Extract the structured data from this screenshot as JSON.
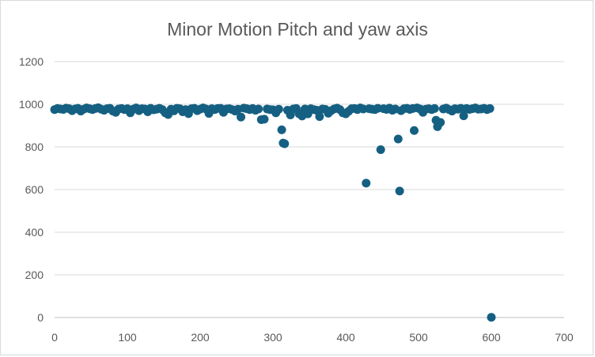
{
  "chart_data": {
    "type": "scatter",
    "title": "Minor Motion Pitch and yaw axis",
    "xlabel": "",
    "ylabel": "",
    "xlim": [
      0,
      700
    ],
    "ylim": [
      0,
      1200
    ],
    "x_ticks": [
      "0",
      "100",
      "200",
      "300",
      "400",
      "500",
      "600",
      "700"
    ],
    "y_ticks": [
      "0",
      "200",
      "400",
      "600",
      "800",
      "1000",
      "1200"
    ],
    "grid": {
      "horizontal": true,
      "vertical": false
    },
    "legend": "none",
    "marker_color": "#156082",
    "series": [
      {
        "points": [
          [
            0,
            975
          ],
          [
            4,
            980
          ],
          [
            8,
            978
          ],
          [
            12,
            976
          ],
          [
            16,
            982
          ],
          [
            20,
            979
          ],
          [
            24,
            970
          ],
          [
            28,
            978
          ],
          [
            32,
            981
          ],
          [
            36,
            968
          ],
          [
            40,
            977
          ],
          [
            44,
            983
          ],
          [
            48,
            979
          ],
          [
            52,
            975
          ],
          [
            56,
            980
          ],
          [
            60,
            984
          ],
          [
            64,
            977
          ],
          [
            68,
            972
          ],
          [
            72,
            979
          ],
          [
            76,
            981
          ],
          [
            80,
            968
          ],
          [
            84,
            962
          ],
          [
            88,
            978
          ],
          [
            92,
            980
          ],
          [
            96,
            975
          ],
          [
            100,
            979
          ],
          [
            104,
            960
          ],
          [
            108,
            977
          ],
          [
            112,
            983
          ],
          [
            116,
            970
          ],
          [
            120,
            979
          ],
          [
            124,
            978
          ],
          [
            128,
            965
          ],
          [
            132,
            981
          ],
          [
            136,
            974
          ],
          [
            140,
            977
          ],
          [
            144,
            981
          ],
          [
            148,
            975
          ],
          [
            152,
            960
          ],
          [
            156,
            952
          ],
          [
            160,
            977
          ],
          [
            164,
            969
          ],
          [
            168,
            981
          ],
          [
            172,
            979
          ],
          [
            176,
            965
          ],
          [
            180,
            975
          ],
          [
            184,
            956
          ],
          [
            188,
            979
          ],
          [
            192,
            981
          ],
          [
            196,
            970
          ],
          [
            200,
            977
          ],
          [
            204,
            983
          ],
          [
            208,
            978
          ],
          [
            212,
            957
          ],
          [
            216,
            979
          ],
          [
            220,
            975
          ],
          [
            224,
            980
          ],
          [
            228,
            981
          ],
          [
            232,
            962
          ],
          [
            236,
            978
          ],
          [
            240,
            979
          ],
          [
            244,
            975
          ],
          [
            248,
            968
          ],
          [
            252,
            977
          ],
          [
            256,
            940
          ],
          [
            260,
            982
          ],
          [
            264,
            979
          ],
          [
            268,
            975
          ],
          [
            272,
            980
          ],
          [
            276,
            972
          ],
          [
            280,
            978
          ],
          [
            284,
            928
          ],
          [
            288,
            930
          ],
          [
            292,
            978
          ],
          [
            296,
            975
          ],
          [
            300,
            974
          ],
          [
            304,
            960
          ],
          [
            308,
            977
          ],
          [
            312,
            880
          ],
          [
            314,
            818
          ],
          [
            316,
            815
          ],
          [
            320,
            972
          ],
          [
            324,
            950
          ],
          [
            328,
            978
          ],
          [
            332,
            980
          ],
          [
            336,
            955
          ],
          [
            340,
            945
          ],
          [
            344,
            978
          ],
          [
            348,
            955
          ],
          [
            352,
            979
          ],
          [
            356,
            975
          ],
          [
            360,
            972
          ],
          [
            364,
            942
          ],
          [
            368,
            978
          ],
          [
            372,
            976
          ],
          [
            376,
            958
          ],
          [
            380,
            970
          ],
          [
            384,
            978
          ],
          [
            388,
            982
          ],
          [
            392,
            975
          ],
          [
            396,
            960
          ],
          [
            400,
            955
          ],
          [
            404,
            967
          ],
          [
            408,
            979
          ],
          [
            412,
            980
          ],
          [
            416,
            975
          ],
          [
            420,
            983
          ],
          [
            424,
            978
          ],
          [
            428,
            630
          ],
          [
            432,
            979
          ],
          [
            436,
            977
          ],
          [
            440,
            975
          ],
          [
            444,
            981
          ],
          [
            448,
            787
          ],
          [
            452,
            979
          ],
          [
            456,
            976
          ],
          [
            460,
            982
          ],
          [
            464,
            972
          ],
          [
            468,
            978
          ],
          [
            472,
            837
          ],
          [
            474,
            593
          ],
          [
            476,
            970
          ],
          [
            480,
            979
          ],
          [
            484,
            981
          ],
          [
            488,
            976
          ],
          [
            492,
            980
          ],
          [
            494,
            877
          ],
          [
            498,
            983
          ],
          [
            502,
            978
          ],
          [
            506,
            962
          ],
          [
            510,
            977
          ],
          [
            514,
            979
          ],
          [
            518,
            975
          ],
          [
            522,
            980
          ],
          [
            524,
            925
          ],
          [
            526,
            895
          ],
          [
            530,
            915
          ],
          [
            534,
            978
          ],
          [
            538,
            982
          ],
          [
            542,
            975
          ],
          [
            546,
            968
          ],
          [
            550,
            979
          ],
          [
            554,
            977
          ],
          [
            558,
            981
          ],
          [
            562,
            946
          ],
          [
            566,
            980
          ],
          [
            570,
            976
          ],
          [
            574,
            979
          ],
          [
            578,
            983
          ],
          [
            582,
            977
          ],
          [
            586,
            978
          ],
          [
            590,
            981
          ],
          [
            594,
            975
          ],
          [
            598,
            980
          ],
          [
            600,
            1
          ]
        ]
      }
    ]
  }
}
